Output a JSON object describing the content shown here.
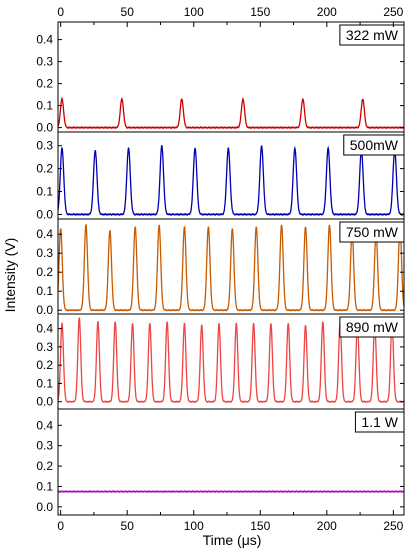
{
  "chart_data": {
    "type": "line",
    "xlabel": "Time (μs)",
    "ylabel": "Intensity (V)",
    "xlim": [
      -2,
      258
    ],
    "x_ticks": [
      0,
      50,
      100,
      150,
      200,
      250
    ],
    "x_tick_labels": [
      "0",
      "50",
      "100",
      "150",
      "200",
      "250"
    ],
    "grid": false,
    "panels": [
      {
        "label": "322 mW",
        "color": "#cc0000",
        "ylim": [
          -0.02,
          0.48
        ],
        "y_ticks": [
          0.0,
          0.1,
          0.2,
          0.3,
          0.4
        ],
        "y_tick_labels": [
          "0.0",
          "0.1",
          "0.2",
          "0.3",
          "0.4"
        ],
        "baseline": 0.0,
        "peak_width": 1.2,
        "peaks": [
          {
            "t": 1,
            "v": 0.13
          },
          {
            "t": 46,
            "v": 0.13
          },
          {
            "t": 91,
            "v": 0.13
          },
          {
            "t": 137,
            "v": 0.13
          },
          {
            "t": 182,
            "v": 0.13
          },
          {
            "t": 227,
            "v": 0.13
          }
        ]
      },
      {
        "label": "500mW",
        "color": "#0000b4",
        "ylim": [
          -0.02,
          0.36
        ],
        "y_ticks": [
          0.0,
          0.1,
          0.2,
          0.3
        ],
        "y_tick_labels": [
          "0.0",
          "0.1",
          "0.2",
          "0.3"
        ],
        "baseline": 0.0,
        "peak_width": 1.3,
        "peaks": [
          {
            "t": 1,
            "v": 0.29
          },
          {
            "t": 26,
            "v": 0.28
          },
          {
            "t": 51,
            "v": 0.29
          },
          {
            "t": 76,
            "v": 0.3
          },
          {
            "t": 101,
            "v": 0.29
          },
          {
            "t": 126,
            "v": 0.29
          },
          {
            "t": 151,
            "v": 0.3
          },
          {
            "t": 176,
            "v": 0.29
          },
          {
            "t": 201,
            "v": 0.29
          },
          {
            "t": 226,
            "v": 0.28
          },
          {
            "t": 251,
            "v": 0.28
          }
        ]
      },
      {
        "label": "750 mW",
        "color": "#c85a00",
        "ylim": [
          -0.02,
          0.48
        ],
        "y_ticks": [
          0.0,
          0.1,
          0.2,
          0.3,
          0.4
        ],
        "y_tick_labels": [
          "0.0",
          "0.1",
          "0.2",
          "0.3",
          "0.4"
        ],
        "baseline": 0.0,
        "peak_width": 1.2,
        "peaks": [
          {
            "t": 0,
            "v": 0.43
          },
          {
            "t": 19,
            "v": 0.45
          },
          {
            "t": 37,
            "v": 0.42
          },
          {
            "t": 56,
            "v": 0.44
          },
          {
            "t": 74,
            "v": 0.45
          },
          {
            "t": 93,
            "v": 0.44
          },
          {
            "t": 111,
            "v": 0.44
          },
          {
            "t": 129,
            "v": 0.43
          },
          {
            "t": 147,
            "v": 0.44
          },
          {
            "t": 166,
            "v": 0.45
          },
          {
            "t": 184,
            "v": 0.44
          },
          {
            "t": 202,
            "v": 0.45
          },
          {
            "t": 219,
            "v": 0.41
          },
          {
            "t": 237,
            "v": 0.4
          },
          {
            "t": 255,
            "v": 0.43
          }
        ]
      },
      {
        "label": "890 mW",
        "color": "#ee4444",
        "ylim": [
          -0.04,
          0.48
        ],
        "y_ticks": [
          0.0,
          0.1,
          0.2,
          0.3,
          0.4
        ],
        "y_tick_labels": [
          "0.0",
          "0.1",
          "0.2",
          "0.3",
          "0.4"
        ],
        "baseline": 0.0,
        "peak_width": 1.1,
        "peaks": [
          {
            "t": 1,
            "v": 0.43
          },
          {
            "t": 14,
            "v": 0.46
          },
          {
            "t": 28,
            "v": 0.44
          },
          {
            "t": 41,
            "v": 0.44
          },
          {
            "t": 54,
            "v": 0.43
          },
          {
            "t": 67,
            "v": 0.43
          },
          {
            "t": 80,
            "v": 0.44
          },
          {
            "t": 93,
            "v": 0.43
          },
          {
            "t": 106,
            "v": 0.42
          },
          {
            "t": 119,
            "v": 0.43
          },
          {
            "t": 132,
            "v": 0.43
          },
          {
            "t": 145,
            "v": 0.43
          },
          {
            "t": 158,
            "v": 0.43
          },
          {
            "t": 171,
            "v": 0.43
          },
          {
            "t": 184,
            "v": 0.42
          },
          {
            "t": 197,
            "v": 0.44
          },
          {
            "t": 210,
            "v": 0.43
          },
          {
            "t": 223,
            "v": 0.42
          },
          {
            "t": 236,
            "v": 0.42
          },
          {
            "t": 249,
            "v": 0.43
          }
        ]
      },
      {
        "label": "1.1 W",
        "color": "#b000c8",
        "ylim": [
          -0.04,
          0.48
        ],
        "y_ticks": [
          0.0,
          0.1,
          0.2,
          0.3,
          0.4
        ],
        "y_tick_labels": [
          "0.0",
          "0.1",
          "0.2",
          "0.3",
          "0.4"
        ],
        "baseline": 0.075,
        "peak_width": 1.0,
        "peaks": []
      }
    ]
  }
}
